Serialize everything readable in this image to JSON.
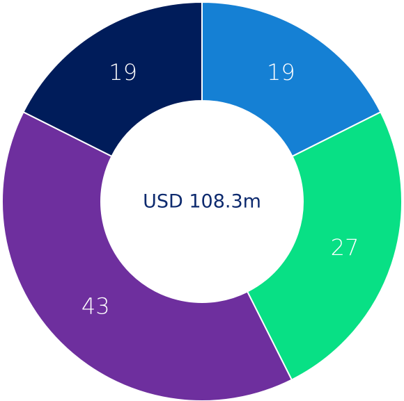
{
  "chart_data": {
    "type": "donut",
    "center_label": "USD 108.3m",
    "values": [
      19,
      27,
      43,
      19
    ],
    "colors": [
      "#1580d4",
      "#08e085",
      "#6e2f9e",
      "#001c5a"
    ]
  }
}
